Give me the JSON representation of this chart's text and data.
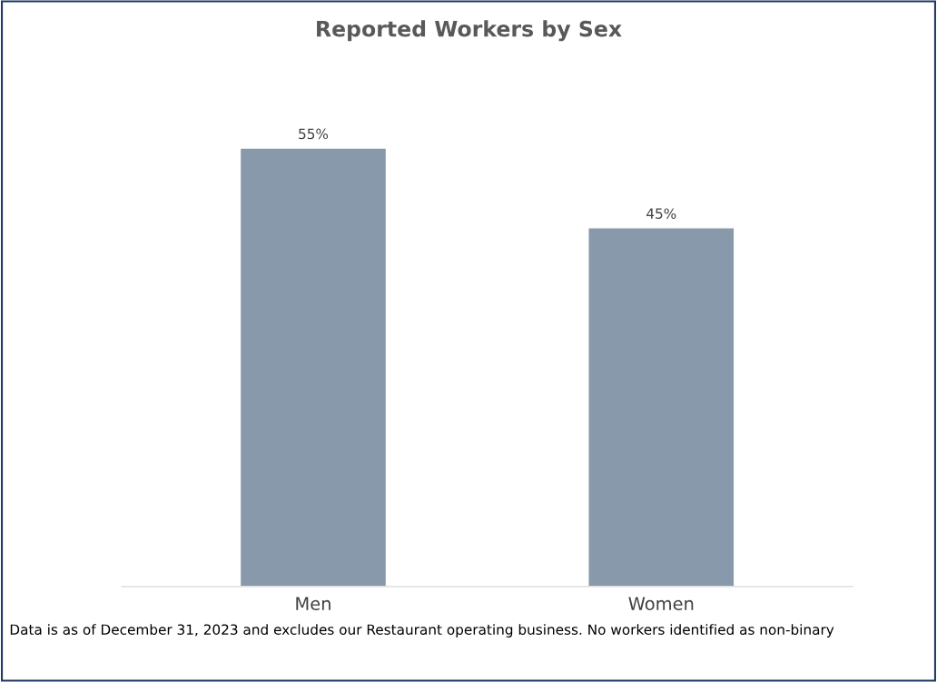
{
  "chart_data": {
    "type": "bar",
    "title": "Reported Workers by Sex",
    "categories": [
      "Men",
      "Women"
    ],
    "values": [
      55,
      45
    ],
    "value_labels": [
      "55%",
      "45%"
    ],
    "color": "#8799aa",
    "grid": false,
    "legend": false,
    "annotations": [
      "Data is as of December 31, 2023 and excludes our Restaurant operating business. No workers identified as non-binary"
    ]
  }
}
